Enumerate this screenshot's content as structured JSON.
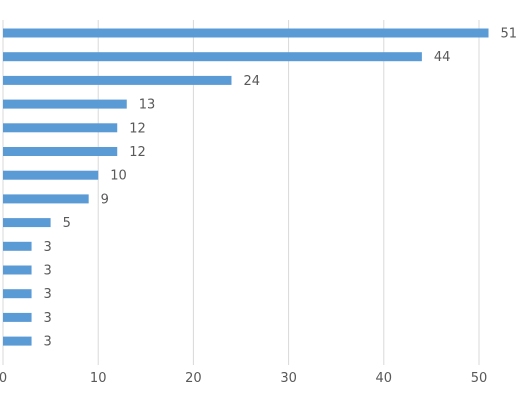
{
  "chart_data": {
    "type": "bar",
    "orientation": "horizontal",
    "categories": [
      "",
      "",
      "",
      "",
      "",
      "",
      "",
      "",
      "",
      "",
      "",
      "",
      "",
      ""
    ],
    "values": [
      51,
      44,
      24,
      13,
      12,
      12,
      10,
      9,
      5,
      3,
      3,
      3,
      3,
      3
    ],
    "title": "",
    "xlabel": "",
    "ylabel": "",
    "xlim": [
      0,
      50
    ],
    "x_ticks": [
      0,
      10,
      20,
      30,
      40,
      50
    ],
    "grid": true,
    "legend": "none",
    "colors": {
      "bar": "#5b9bd5",
      "grid": "#d9d9d9",
      "text": "#595959"
    }
  }
}
